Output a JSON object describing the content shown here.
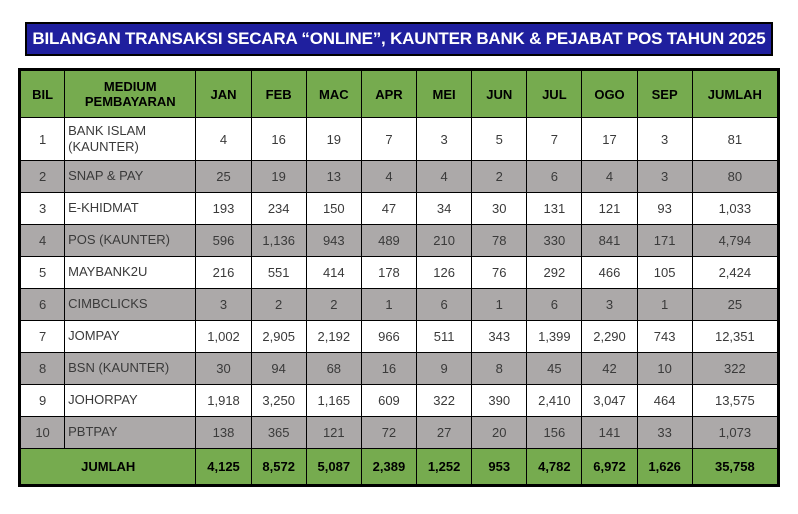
{
  "page": {
    "title": "BILANGAN TRANSAKSI SECARA “ONLINE”, KAUNTER BANK & PEJABAT POS TAHUN 2025"
  },
  "colors": {
    "title_bg": "#1f1f9e",
    "title_text": "#ffffff",
    "header_bg": "#76ab4f",
    "row_bg": "#ffffff",
    "row_alt_bg": "#aca9a9",
    "total_bg": "#76ab4f",
    "border": "#000000"
  },
  "table": {
    "columns": [
      "BIL",
      "MEDIUM PEMBAYARAN",
      "JAN",
      "FEB",
      "MAC",
      "APR",
      "MEI",
      "JUN",
      "JUL",
      "OGO",
      "SEP",
      "JUMLAH"
    ],
    "rows": [
      {
        "bil": "1",
        "medium": "BANK ISLAM (KAUNTER)",
        "values": [
          "4",
          "16",
          "19",
          "7",
          "3",
          "5",
          "7",
          "17",
          "3",
          "81"
        ]
      },
      {
        "bil": "2",
        "medium": "SNAP & PAY",
        "values": [
          "25",
          "19",
          "13",
          "4",
          "4",
          "2",
          "6",
          "4",
          "3",
          "80"
        ]
      },
      {
        "bil": "3",
        "medium": "E-KHIDMAT",
        "values": [
          "193",
          "234",
          "150",
          "47",
          "34",
          "30",
          "131",
          "121",
          "93",
          "1,033"
        ]
      },
      {
        "bil": "4",
        "medium": "POS (KAUNTER)",
        "values": [
          "596",
          "1,136",
          "943",
          "489",
          "210",
          "78",
          "330",
          "841",
          "171",
          "4,794"
        ]
      },
      {
        "bil": "5",
        "medium": "MAYBANK2U",
        "values": [
          "216",
          "551",
          "414",
          "178",
          "126",
          "76",
          "292",
          "466",
          "105",
          "2,424"
        ]
      },
      {
        "bil": "6",
        "medium": "CIMBCLICKS",
        "values": [
          "3",
          "2",
          "2",
          "1",
          "6",
          "1",
          "6",
          "3",
          "1",
          "25"
        ]
      },
      {
        "bil": "7",
        "medium": "JOMPAY",
        "values": [
          "1,002",
          "2,905",
          "2,192",
          "966",
          "511",
          "343",
          "1,399",
          "2,290",
          "743",
          "12,351"
        ]
      },
      {
        "bil": "8",
        "medium": "BSN (KAUNTER)",
        "values": [
          "30",
          "94",
          "68",
          "16",
          "9",
          "8",
          "45",
          "42",
          "10",
          "322"
        ]
      },
      {
        "bil": "9",
        "medium": "JOHORPAY",
        "values": [
          "1,918",
          "3,250",
          "1,165",
          "609",
          "322",
          "390",
          "2,410",
          "3,047",
          "464",
          "13,575"
        ]
      },
      {
        "bil": "10",
        "medium": "PBTPAY",
        "values": [
          "138",
          "365",
          "121",
          "72",
          "27",
          "20",
          "156",
          "141",
          "33",
          "1,073"
        ]
      }
    ],
    "total": {
      "label": "JUMLAH",
      "values": [
        "4,125",
        "8,572",
        "5,087",
        "2,389",
        "1,252",
        "953",
        "4,782",
        "6,972",
        "1,626",
        "35,758"
      ]
    }
  }
}
